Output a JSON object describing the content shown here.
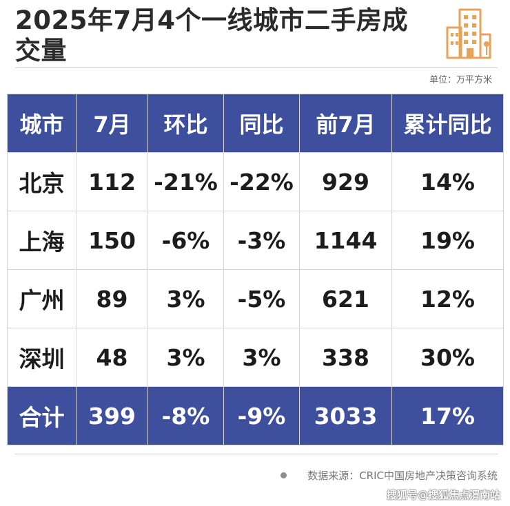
{
  "title": "2025年7月4个一线城市二手房成交量",
  "unit": "单位：万平方米",
  "logo_icon": "building-icon",
  "accent_color": "#3d4f9d",
  "logo_color": "#e8a25a",
  "chart_data": {
    "type": "table",
    "title": "2025年7月4个一线城市二手房成交量",
    "unit": "单位：万平方米",
    "columns": [
      "城市",
      "7月",
      "环比",
      "同比",
      "前7月",
      "累计同比"
    ],
    "rows": [
      [
        "北京",
        "112",
        "-21%",
        "-22%",
        "929",
        "14%"
      ],
      [
        "上海",
        "150",
        "-6%",
        "-3%",
        "1144",
        "19%"
      ],
      [
        "广州",
        "89",
        "3%",
        "-5%",
        "621",
        "12%"
      ],
      [
        "深圳",
        "48",
        "3%",
        "3%",
        "338",
        "30%"
      ]
    ],
    "total": [
      "合计",
      "399",
      "-8%",
      "-9%",
      "3033",
      "17%"
    ]
  },
  "source": "数据来源：CRIC中国房地产决策咨询系统",
  "watermark": "搜狐号@搜狐焦点渭南站"
}
